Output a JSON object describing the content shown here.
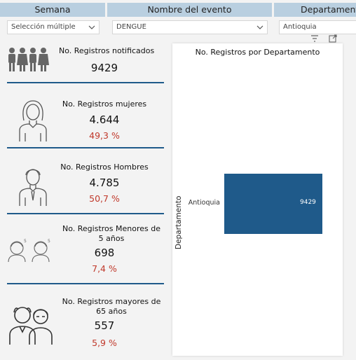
{
  "filters": {
    "headers": [
      "Semana",
      "Nombre del evento",
      "Departamento"
    ],
    "semana_value": "Selección múltiple",
    "evento_value": "DENGUE",
    "departamento_value": "Antioquia"
  },
  "kpis": {
    "total": {
      "title": "No. Registros notificados",
      "value": "9429"
    },
    "mujeres": {
      "title": "No. Registros mujeres",
      "value": "4.644",
      "pct": "49,3 %"
    },
    "hombres": {
      "title": "No. Registros Hombres",
      "value": "4.785",
      "pct": "50,7 %"
    },
    "menores": {
      "title_l1": "No. Registros Menores de",
      "title_l2": "5 años",
      "value": "698",
      "pct": "7,4 %"
    },
    "mayores": {
      "title_l1": "No. Registros mayores de",
      "title_l2": "65 años",
      "value": "557",
      "pct": "5,9 %"
    }
  },
  "colors": {
    "accent": "#1f5a8a",
    "pct": "#c0392b",
    "header": "#b9cfe0"
  },
  "chart_data": {
    "type": "bar",
    "orientation": "horizontal",
    "title": "No. Registros por Departamento",
    "ylabel": "Departamento",
    "xlabel": "",
    "categories": [
      "Antioquia"
    ],
    "values": [
      9429
    ],
    "data_labels": [
      "9429"
    ],
    "xlim": [
      0,
      9429
    ]
  }
}
